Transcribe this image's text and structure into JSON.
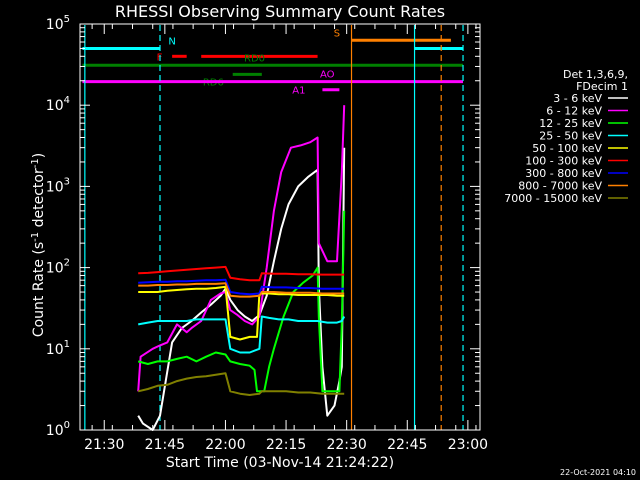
{
  "chart_data": {
    "type": "line",
    "title": "RHESSI Observing Summary Count Rates",
    "xlabel": "Start Time (03-Nov-14 21:24:22)",
    "ylabel": "Count Rate (s⁻¹ detector⁻¹)",
    "ylabel_parts": {
      "main": "Count Rate (s",
      "sup1": "-1",
      "mid": " detector",
      "sup2": "-1",
      "end": ")"
    },
    "yscale": "log",
    "xlim": [
      21.4,
      23.05
    ],
    "ylim": [
      1,
      100000
    ],
    "x_ticks": [
      {
        "v": 21.5,
        "label": "21:30"
      },
      {
        "v": 21.75,
        "label": "21:45"
      },
      {
        "v": 22.0,
        "label": "22:00"
      },
      {
        "v": 22.25,
        "label": "22:15"
      },
      {
        "v": 22.5,
        "label": "22:30"
      },
      {
        "v": 22.75,
        "label": "22:45"
      },
      {
        "v": 23.0,
        "label": "23:00"
      }
    ],
    "y_ticks": [
      {
        "v": 1,
        "base": "10",
        "exp": "0"
      },
      {
        "v": 10,
        "base": "10",
        "exp": "1"
      },
      {
        "v": 100,
        "base": "10",
        "exp": "2"
      },
      {
        "v": 1000,
        "base": "10",
        "exp": "3"
      },
      {
        "v": 10000,
        "base": "10",
        "exp": "4"
      },
      {
        "v": 100000,
        "base": "10",
        "exp": "5"
      }
    ],
    "legend": {
      "placement": "right",
      "header": [
        "Det 1,3,6,9,",
        "FDecim 1"
      ],
      "entries": [
        {
          "label": "3 - 6 keV",
          "color": "#ffffff"
        },
        {
          "label": "6 - 12 keV",
          "color": "#ff00ff"
        },
        {
          "label": "12 - 25 keV",
          "color": "#00ff00"
        },
        {
          "label": "25 - 50 keV",
          "color": "#00ffff"
        },
        {
          "label": "50 - 100 keV",
          "color": "#ffff00"
        },
        {
          "label": "100 - 300 keV",
          "color": "#ff0000"
        },
        {
          "label": "300 - 800 keV",
          "color": "#0000ff"
        },
        {
          "label": "800 - 7000 keV",
          "color": "#ff8000"
        },
        {
          "label": "7000 - 15000 keV",
          "color": "#808000"
        }
      ]
    },
    "flag_bars": [
      {
        "label": "N",
        "color": "#00ffff",
        "y": 50000,
        "segments": [
          [
            21.41,
            21.73
          ],
          [
            22.78,
            22.98
          ]
        ],
        "label_x": 21.78,
        "label_pos": "above"
      },
      {
        "label": "S",
        "color": "#ff8000",
        "y": 63000,
        "segments": [
          [
            22.52,
            22.93
          ]
        ],
        "label_x": 22.46,
        "label_pos": "above"
      },
      {
        "label": "F",
        "color": "#ff0000",
        "y": 40000,
        "segments": [
          [
            21.78,
            21.84
          ],
          [
            21.9,
            22.38
          ]
        ],
        "label_x": 21.74,
        "label_pos": "left"
      },
      {
        "label": "RD0",
        "color": "#008000",
        "y": 31000,
        "segments": [
          [
            21.41,
            22.98
          ]
        ],
        "label_x": 22.12,
        "label_pos": "above"
      },
      {
        "label": "RD6",
        "color": "#008000",
        "y": 24000,
        "segments": [
          [
            22.03,
            22.15
          ]
        ],
        "label_x": 21.95,
        "label_pos": "below"
      },
      {
        "label": "AO",
        "color": "#ff00ff",
        "y": 19500,
        "segments": [
          [
            21.41,
            22.98
          ]
        ],
        "label_x": 22.42,
        "label_pos": "above"
      },
      {
        "label": "A1",
        "color": "#ff00ff",
        "y": 15500,
        "segments": [
          [
            22.4,
            22.47
          ]
        ],
        "label_x": 22.33,
        "label_pos": "left"
      }
    ],
    "vlines": [
      {
        "x": 21.42,
        "color": "#00ffff",
        "style": "solid"
      },
      {
        "x": 21.73,
        "color": "#00ffff",
        "style": "dashed"
      },
      {
        "x": 22.52,
        "color": "#ff8000",
        "style": "solid"
      },
      {
        "x": 22.78,
        "color": "#00ffff",
        "style": "solid"
      },
      {
        "x": 22.89,
        "color": "#ff8000",
        "style": "dashed"
      },
      {
        "x": 22.98,
        "color": "#00ffff",
        "style": "dashed"
      }
    ],
    "series": [
      {
        "name": "3 - 6 keV",
        "color": "#ffffff",
        "points": [
          [
            21.64,
            1.5
          ],
          [
            21.66,
            1.2
          ],
          [
            21.7,
            1.0
          ],
          [
            21.73,
            1.5
          ],
          [
            21.78,
            12
          ],
          [
            21.82,
            18
          ],
          [
            21.86,
            22
          ],
          [
            21.9,
            28
          ],
          [
            21.94,
            35
          ],
          [
            21.98,
            45
          ],
          [
            22.0,
            55
          ],
          [
            22.02,
            40
          ],
          [
            22.05,
            30
          ],
          [
            22.08,
            25
          ],
          [
            22.11,
            22
          ],
          [
            22.14,
            26
          ],
          [
            22.17,
            45
          ],
          [
            22.2,
            120
          ],
          [
            22.23,
            300
          ],
          [
            22.26,
            600
          ],
          [
            22.3,
            1000
          ],
          [
            22.34,
            1300
          ],
          [
            22.38,
            1600
          ],
          [
            22.385,
            60
          ],
          [
            22.4,
            6
          ],
          [
            22.42,
            1.5
          ],
          [
            22.45,
            2
          ],
          [
            22.47,
            4
          ],
          [
            22.48,
            6
          ],
          [
            22.49,
            3000
          ]
        ]
      },
      {
        "name": "6 - 12 keV",
        "color": "#ff00ff",
        "points": [
          [
            21.64,
            3
          ],
          [
            21.65,
            8
          ],
          [
            21.7,
            10
          ],
          [
            21.73,
            11
          ],
          [
            21.76,
            12
          ],
          [
            21.8,
            20
          ],
          [
            21.84,
            16
          ],
          [
            21.86,
            18
          ],
          [
            21.9,
            22
          ],
          [
            21.94,
            40
          ],
          [
            21.98,
            48
          ],
          [
            22.0,
            50
          ],
          [
            22.02,
            30
          ],
          [
            22.05,
            26
          ],
          [
            22.08,
            22
          ],
          [
            22.11,
            20
          ],
          [
            22.14,
            25
          ],
          [
            22.17,
            100
          ],
          [
            22.2,
            500
          ],
          [
            22.23,
            1500
          ],
          [
            22.27,
            3000
          ],
          [
            22.31,
            3200
          ],
          [
            22.35,
            3500
          ],
          [
            22.38,
            4000
          ],
          [
            22.385,
            200
          ],
          [
            22.42,
            120
          ],
          [
            22.46,
            120
          ],
          [
            22.48,
            1500
          ],
          [
            22.49,
            10000
          ]
        ]
      },
      {
        "name": "12 - 25 keV",
        "color": "#00ff00",
        "points": [
          [
            21.64,
            7
          ],
          [
            21.68,
            6.5
          ],
          [
            21.72,
            7
          ],
          [
            21.76,
            7
          ],
          [
            21.8,
            7.5
          ],
          [
            21.84,
            8
          ],
          [
            21.88,
            7
          ],
          [
            21.92,
            8
          ],
          [
            21.96,
            9
          ],
          [
            22.0,
            8.5
          ],
          [
            22.02,
            7
          ],
          [
            22.06,
            6.5
          ],
          [
            22.1,
            6.2
          ],
          [
            22.12,
            5.5
          ],
          [
            22.13,
            3
          ],
          [
            22.16,
            3
          ],
          [
            22.18,
            6
          ],
          [
            22.2,
            10
          ],
          [
            22.24,
            25
          ],
          [
            22.28,
            50
          ],
          [
            22.32,
            65
          ],
          [
            22.36,
            80
          ],
          [
            22.38,
            100
          ],
          [
            22.385,
            25
          ],
          [
            22.4,
            3
          ],
          [
            22.44,
            3
          ],
          [
            22.47,
            3
          ],
          [
            22.48,
            20
          ],
          [
            22.49,
            500
          ]
        ]
      },
      {
        "name": "25 - 50 keV",
        "color": "#00ffff",
        "points": [
          [
            21.64,
            20
          ],
          [
            21.68,
            21
          ],
          [
            21.72,
            22
          ],
          [
            21.76,
            22
          ],
          [
            21.8,
            22
          ],
          [
            21.84,
            22
          ],
          [
            21.88,
            23
          ],
          [
            21.92,
            23
          ],
          [
            21.96,
            23
          ],
          [
            22.0,
            23
          ],
          [
            22.02,
            10
          ],
          [
            22.06,
            9
          ],
          [
            22.1,
            9
          ],
          [
            22.14,
            10
          ],
          [
            22.15,
            25
          ],
          [
            22.18,
            24
          ],
          [
            22.22,
            23
          ],
          [
            22.26,
            23
          ],
          [
            22.3,
            22
          ],
          [
            22.34,
            22
          ],
          [
            22.38,
            22
          ],
          [
            22.42,
            21
          ],
          [
            22.46,
            21
          ],
          [
            22.48,
            22
          ],
          [
            22.49,
            25
          ]
        ]
      },
      {
        "name": "50 - 100 keV",
        "color": "#ffff00",
        "points": [
          [
            21.64,
            50
          ],
          [
            21.68,
            50
          ],
          [
            21.72,
            50
          ],
          [
            21.76,
            52
          ],
          [
            21.8,
            53
          ],
          [
            21.84,
            54
          ],
          [
            21.88,
            55
          ],
          [
            21.92,
            55
          ],
          [
            21.96,
            56
          ],
          [
            22.0,
            58
          ],
          [
            22.02,
            14
          ],
          [
            22.06,
            13
          ],
          [
            22.1,
            14
          ],
          [
            22.13,
            14
          ],
          [
            22.14,
            48
          ],
          [
            22.18,
            48
          ],
          [
            22.22,
            47
          ],
          [
            22.26,
            47
          ],
          [
            22.3,
            46
          ],
          [
            22.34,
            46
          ],
          [
            22.38,
            46
          ],
          [
            22.42,
            46
          ],
          [
            22.46,
            45
          ],
          [
            22.48,
            45
          ],
          [
            22.49,
            45
          ]
        ]
      },
      {
        "name": "100 - 300 keV",
        "color": "#ff0000",
        "points": [
          [
            21.64,
            85
          ],
          [
            21.68,
            86
          ],
          [
            21.72,
            88
          ],
          [
            21.76,
            90
          ],
          [
            21.8,
            92
          ],
          [
            21.84,
            94
          ],
          [
            21.88,
            96
          ],
          [
            21.92,
            98
          ],
          [
            21.96,
            100
          ],
          [
            22.0,
            102
          ],
          [
            22.02,
            75
          ],
          [
            22.06,
            72
          ],
          [
            22.1,
            70
          ],
          [
            22.14,
            70
          ],
          [
            22.15,
            85
          ],
          [
            22.2,
            84
          ],
          [
            22.25,
            84
          ],
          [
            22.3,
            83
          ],
          [
            22.35,
            83
          ],
          [
            22.4,
            82
          ],
          [
            22.45,
            82
          ],
          [
            22.49,
            82
          ]
        ]
      },
      {
        "name": "300 - 800 keV",
        "color": "#0000ff",
        "points": [
          [
            21.64,
            65
          ],
          [
            21.68,
            66
          ],
          [
            21.72,
            67
          ],
          [
            21.76,
            67
          ],
          [
            21.8,
            68
          ],
          [
            21.84,
            68
          ],
          [
            21.88,
            69
          ],
          [
            21.92,
            70
          ],
          [
            21.96,
            70
          ],
          [
            22.0,
            71
          ],
          [
            22.02,
            50
          ],
          [
            22.06,
            48
          ],
          [
            22.1,
            47
          ],
          [
            22.14,
            48
          ],
          [
            22.15,
            58
          ],
          [
            22.2,
            57
          ],
          [
            22.25,
            57
          ],
          [
            22.3,
            56
          ],
          [
            22.35,
            56
          ],
          [
            22.4,
            55
          ],
          [
            22.45,
            55
          ],
          [
            22.49,
            55
          ]
        ]
      },
      {
        "name": "800 - 7000 keV",
        "color": "#ff8000",
        "points": [
          [
            21.64,
            60
          ],
          [
            21.68,
            60
          ],
          [
            21.72,
            61
          ],
          [
            21.76,
            61
          ],
          [
            21.8,
            62
          ],
          [
            21.84,
            62
          ],
          [
            21.88,
            63
          ],
          [
            21.92,
            63
          ],
          [
            21.96,
            63
          ],
          [
            22.0,
            64
          ],
          [
            22.02,
            45
          ],
          [
            22.06,
            44
          ],
          [
            22.1,
            44
          ],
          [
            22.14,
            45
          ],
          [
            22.15,
            50
          ],
          [
            22.2,
            50
          ],
          [
            22.25,
            49
          ],
          [
            22.3,
            49
          ],
          [
            22.35,
            49
          ],
          [
            22.4,
            48
          ],
          [
            22.45,
            48
          ],
          [
            22.49,
            48
          ]
        ]
      },
      {
        "name": "7000 - 15000 keV",
        "color": "#808000",
        "points": [
          [
            21.64,
            3
          ],
          [
            21.68,
            3.2
          ],
          [
            21.72,
            3.5
          ],
          [
            21.76,
            3.6
          ],
          [
            21.8,
            4
          ],
          [
            21.84,
            4.3
          ],
          [
            21.88,
            4.5
          ],
          [
            21.92,
            4.6
          ],
          [
            21.96,
            4.8
          ],
          [
            22.0,
            5
          ],
          [
            22.02,
            3
          ],
          [
            22.06,
            2.8
          ],
          [
            22.1,
            2.7
          ],
          [
            22.14,
            2.8
          ],
          [
            22.15,
            3
          ],
          [
            22.2,
            3
          ],
          [
            22.25,
            3
          ],
          [
            22.3,
            2.9
          ],
          [
            22.35,
            2.9
          ],
          [
            22.4,
            2.8
          ],
          [
            22.45,
            2.8
          ],
          [
            22.49,
            2.8
          ]
        ]
      }
    ],
    "footer_date": "22-Oct-2021 04:10"
  }
}
